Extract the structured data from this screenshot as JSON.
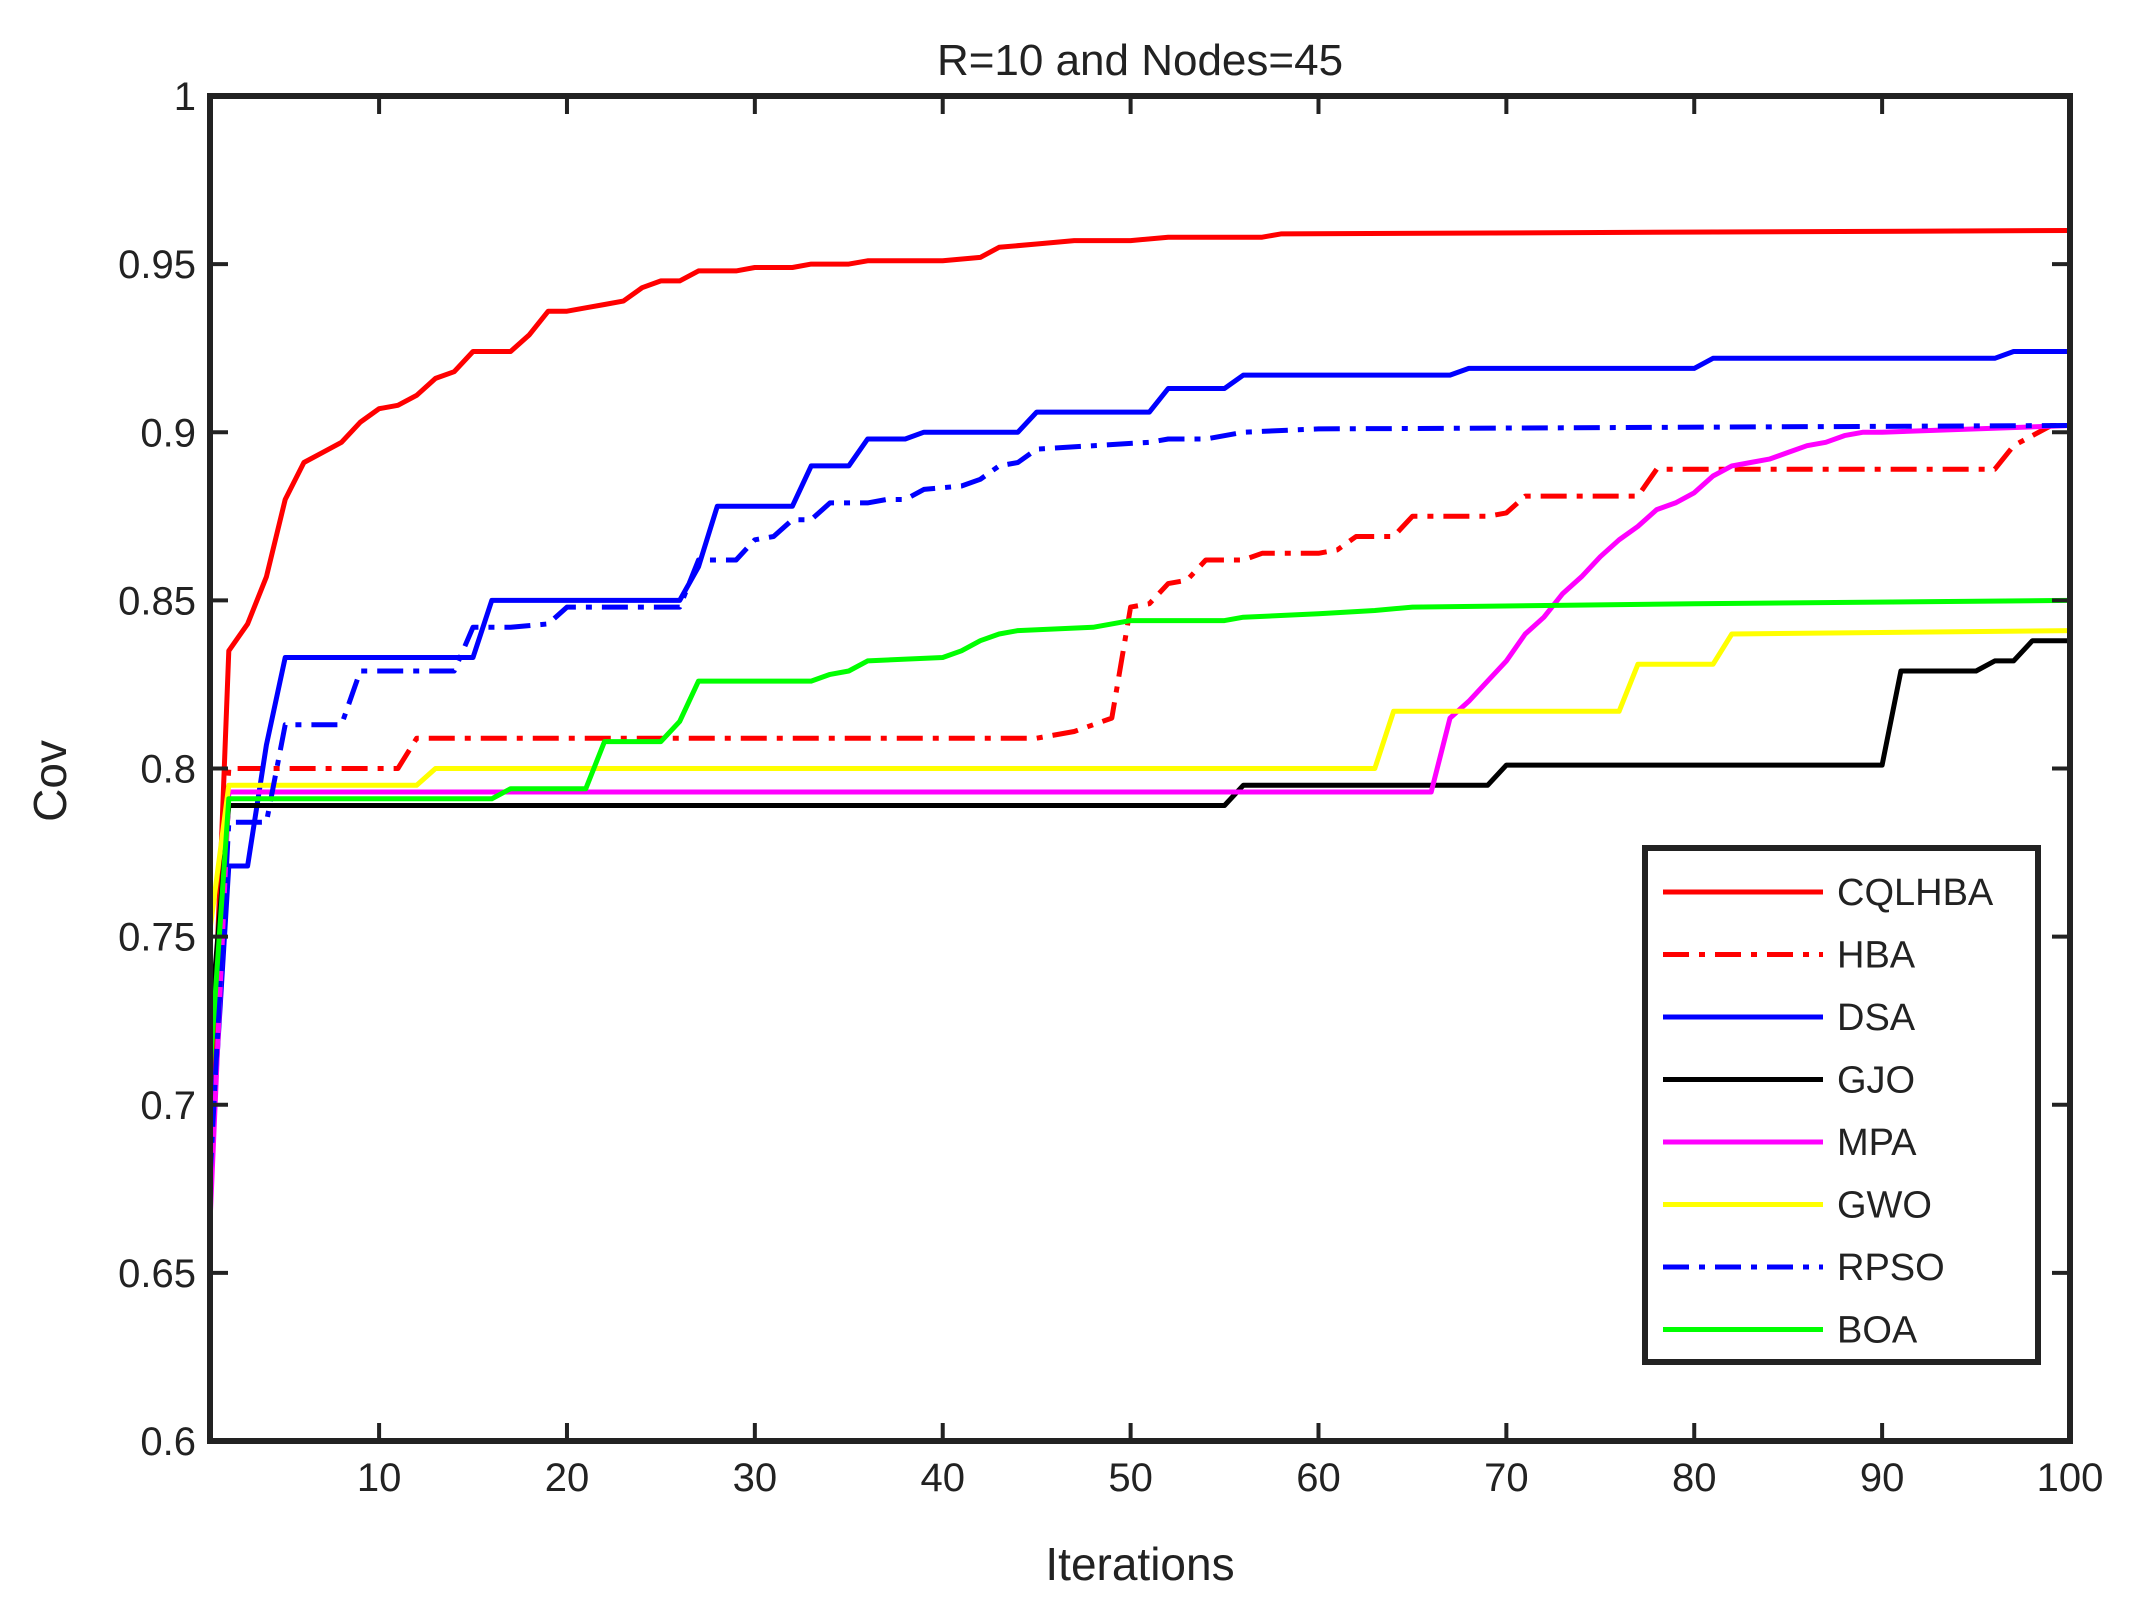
{
  "chart_data": {
    "type": "line",
    "title": "R=10 and Nodes=45",
    "xlabel": "Iterations",
    "ylabel": "Cov",
    "xlim": [
      1,
      100
    ],
    "ylim": [
      0.6,
      1.0
    ],
    "xticks": [
      10,
      20,
      30,
      40,
      50,
      60,
      70,
      80,
      90,
      100
    ],
    "xtick_labels": [
      "10",
      "20",
      "30",
      "40",
      "50",
      "60",
      "70",
      "80",
      "90",
      "100"
    ],
    "yticks": [
      0.6,
      0.65,
      0.7,
      0.75,
      0.8,
      0.85,
      0.9,
      0.95,
      1.0
    ],
    "ytick_labels": [
      "0.6",
      "0.65",
      "0.7",
      "0.75",
      "0.8",
      "0.85",
      "0.9",
      "0.95",
      "1"
    ],
    "grid": false,
    "legend_position": "bottom-right",
    "series": [
      {
        "name": "CQLHBA",
        "color": "#ff0000",
        "dash": "solid",
        "points": [
          [
            1,
            0.69
          ],
          [
            2,
            0.835
          ],
          [
            3,
            0.843
          ],
          [
            4,
            0.857
          ],
          [
            5,
            0.88
          ],
          [
            6,
            0.891
          ],
          [
            7,
            0.894
          ],
          [
            8,
            0.897
          ],
          [
            9,
            0.903
          ],
          [
            10,
            0.907
          ],
          [
            11,
            0.908
          ],
          [
            12,
            0.911
          ],
          [
            13,
            0.916
          ],
          [
            14,
            0.918
          ],
          [
            15,
            0.924
          ],
          [
            16,
            0.924
          ],
          [
            17,
            0.924
          ],
          [
            18,
            0.929
          ],
          [
            19,
            0.936
          ],
          [
            20,
            0.936
          ],
          [
            21,
            0.937
          ],
          [
            22,
            0.938
          ],
          [
            23,
            0.939
          ],
          [
            24,
            0.943
          ],
          [
            25,
            0.945
          ],
          [
            26,
            0.945
          ],
          [
            27,
            0.948
          ],
          [
            28,
            0.948
          ],
          [
            29,
            0.948
          ],
          [
            30,
            0.949
          ],
          [
            32,
            0.949
          ],
          [
            33,
            0.95
          ],
          [
            35,
            0.95
          ],
          [
            36,
            0.951
          ],
          [
            40,
            0.951
          ],
          [
            42,
            0.952
          ],
          [
            43,
            0.955
          ],
          [
            45,
            0.956
          ],
          [
            47,
            0.957
          ],
          [
            50,
            0.957
          ],
          [
            52,
            0.958
          ],
          [
            57,
            0.958
          ],
          [
            58,
            0.959
          ],
          [
            100,
            0.96
          ]
        ]
      },
      {
        "name": "HBA",
        "color": "#ff0000",
        "dash": "dashdot",
        "points": [
          [
            1,
            0.71
          ],
          [
            2,
            0.8
          ],
          [
            11,
            0.8
          ],
          [
            12,
            0.809
          ],
          [
            45,
            0.809
          ],
          [
            47,
            0.811
          ],
          [
            48,
            0.813
          ],
          [
            49,
            0.815
          ],
          [
            50,
            0.848
          ],
          [
            51,
            0.849
          ],
          [
            52,
            0.855
          ],
          [
            53,
            0.856
          ],
          [
            54,
            0.862
          ],
          [
            56,
            0.862
          ],
          [
            57,
            0.864
          ],
          [
            60,
            0.864
          ],
          [
            61,
            0.865
          ],
          [
            62,
            0.869
          ],
          [
            64,
            0.869
          ],
          [
            65,
            0.875
          ],
          [
            69,
            0.875
          ],
          [
            70,
            0.876
          ],
          [
            71,
            0.881
          ],
          [
            77,
            0.881
          ],
          [
            78,
            0.889
          ],
          [
            96,
            0.889
          ],
          [
            97,
            0.896
          ],
          [
            99,
            0.902
          ],
          [
            100,
            0.902
          ]
        ]
      },
      {
        "name": "DSA",
        "color": "#0000ff",
        "dash": "solid",
        "points": [
          [
            1,
            0.68
          ],
          [
            2,
            0.771
          ],
          [
            3,
            0.771
          ],
          [
            4,
            0.807
          ],
          [
            5,
            0.833
          ],
          [
            15,
            0.833
          ],
          [
            16,
            0.85
          ],
          [
            26,
            0.85
          ],
          [
            27,
            0.86
          ],
          [
            28,
            0.878
          ],
          [
            32,
            0.878
          ],
          [
            33,
            0.89
          ],
          [
            35,
            0.89
          ],
          [
            36,
            0.898
          ],
          [
            38,
            0.898
          ],
          [
            39,
            0.9
          ],
          [
            44,
            0.9
          ],
          [
            45,
            0.906
          ],
          [
            51,
            0.906
          ],
          [
            52,
            0.913
          ],
          [
            55,
            0.913
          ],
          [
            56,
            0.917
          ],
          [
            67,
            0.917
          ],
          [
            68,
            0.919
          ],
          [
            80,
            0.919
          ],
          [
            81,
            0.922
          ],
          [
            96,
            0.922
          ],
          [
            97,
            0.924
          ],
          [
            100,
            0.924
          ]
        ]
      },
      {
        "name": "GJO",
        "color": "#000000",
        "dash": "solid",
        "points": [
          [
            1,
            0.722
          ],
          [
            2,
            0.789
          ],
          [
            55,
            0.789
          ],
          [
            56,
            0.795
          ],
          [
            69,
            0.795
          ],
          [
            70,
            0.801
          ],
          [
            90,
            0.801
          ],
          [
            91,
            0.829
          ],
          [
            95,
            0.829
          ],
          [
            96,
            0.832
          ],
          [
            97,
            0.832
          ],
          [
            98,
            0.838
          ],
          [
            100,
            0.838
          ]
        ]
      },
      {
        "name": "MPA",
        "color": "#ff00ff",
        "dash": "solid",
        "points": [
          [
            1,
            0.665
          ],
          [
            2,
            0.793
          ],
          [
            66,
            0.793
          ],
          [
            67,
            0.815
          ],
          [
            68,
            0.82
          ],
          [
            69,
            0.826
          ],
          [
            70,
            0.832
          ],
          [
            71,
            0.84
          ],
          [
            72,
            0.845
          ],
          [
            73,
            0.852
          ],
          [
            74,
            0.857
          ],
          [
            75,
            0.863
          ],
          [
            76,
            0.868
          ],
          [
            77,
            0.872
          ],
          [
            78,
            0.877
          ],
          [
            79,
            0.879
          ],
          [
            80,
            0.882
          ],
          [
            81,
            0.887
          ],
          [
            82,
            0.89
          ],
          [
            83,
            0.891
          ],
          [
            84,
            0.892
          ],
          [
            85,
            0.894
          ],
          [
            86,
            0.896
          ],
          [
            87,
            0.897
          ],
          [
            88,
            0.899
          ],
          [
            89,
            0.9
          ],
          [
            90,
            0.9
          ],
          [
            100,
            0.902
          ]
        ]
      },
      {
        "name": "GWO",
        "color": "#ffff00",
        "dash": "solid",
        "points": [
          [
            1,
            0.752
          ],
          [
            2,
            0.795
          ],
          [
            12,
            0.795
          ],
          [
            13,
            0.8
          ],
          [
            63,
            0.8
          ],
          [
            64,
            0.817
          ],
          [
            76,
            0.817
          ],
          [
            77,
            0.831
          ],
          [
            81,
            0.831
          ],
          [
            82,
            0.84
          ],
          [
            100,
            0.841
          ]
        ]
      },
      {
        "name": "RPSO",
        "color": "#0000ff",
        "dash": "dashdot",
        "points": [
          [
            1,
            0.678
          ],
          [
            2,
            0.784
          ],
          [
            4,
            0.784
          ],
          [
            5,
            0.813
          ],
          [
            8,
            0.813
          ],
          [
            9,
            0.829
          ],
          [
            14,
            0.829
          ],
          [
            15,
            0.842
          ],
          [
            17,
            0.842
          ],
          [
            19,
            0.843
          ],
          [
            20,
            0.848
          ],
          [
            26,
            0.848
          ],
          [
            27,
            0.862
          ],
          [
            29,
            0.862
          ],
          [
            30,
            0.868
          ],
          [
            31,
            0.869
          ],
          [
            32,
            0.874
          ],
          [
            33,
            0.874
          ],
          [
            34,
            0.879
          ],
          [
            36,
            0.879
          ],
          [
            37,
            0.88
          ],
          [
            38,
            0.88
          ],
          [
            39,
            0.883
          ],
          [
            41,
            0.884
          ],
          [
            42,
            0.886
          ],
          [
            43,
            0.89
          ],
          [
            44,
            0.891
          ],
          [
            45,
            0.895
          ],
          [
            48,
            0.896
          ],
          [
            51,
            0.897
          ],
          [
            52,
            0.898
          ],
          [
            54,
            0.898
          ],
          [
            56,
            0.9
          ],
          [
            60,
            0.901
          ],
          [
            100,
            0.902
          ]
        ]
      },
      {
        "name": "BOA",
        "color": "#00ff00",
        "dash": "solid",
        "points": [
          [
            1,
            0.71
          ],
          [
            2,
            0.791
          ],
          [
            16,
            0.791
          ],
          [
            17,
            0.794
          ],
          [
            21,
            0.794
          ],
          [
            22,
            0.808
          ],
          [
            25,
            0.808
          ],
          [
            26,
            0.814
          ],
          [
            27,
            0.826
          ],
          [
            33,
            0.826
          ],
          [
            34,
            0.828
          ],
          [
            35,
            0.829
          ],
          [
            36,
            0.832
          ],
          [
            40,
            0.833
          ],
          [
            41,
            0.835
          ],
          [
            42,
            0.838
          ],
          [
            43,
            0.84
          ],
          [
            44,
            0.841
          ],
          [
            48,
            0.842
          ],
          [
            50,
            0.844
          ],
          [
            55,
            0.844
          ],
          [
            56,
            0.845
          ],
          [
            60,
            0.846
          ],
          [
            63,
            0.847
          ],
          [
            65,
            0.848
          ],
          [
            80,
            0.849
          ],
          [
            100,
            0.85
          ]
        ]
      }
    ]
  }
}
